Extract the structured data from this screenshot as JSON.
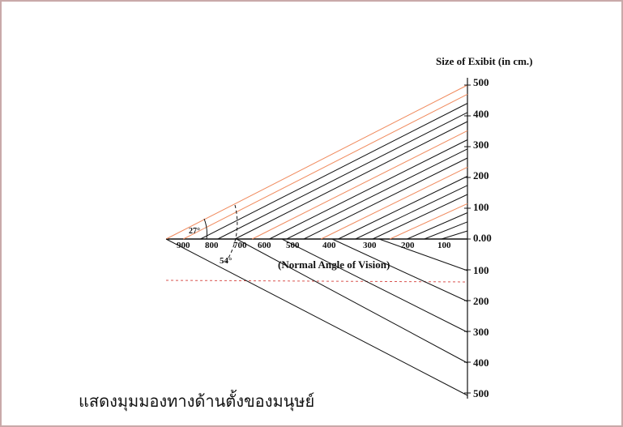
{
  "diagram": {
    "vertical_scale_title": "Size of Exibit (in cm.)",
    "upper_scale_labels": [
      "500",
      "400",
      "300",
      "200",
      "100",
      "0.00"
    ],
    "lower_scale_labels": [
      "100",
      "200",
      "300",
      "400",
      "500"
    ],
    "distance_labels": [
      "900",
      "800",
      "700",
      "600",
      "500",
      "400",
      "300",
      "200",
      "100"
    ],
    "upper_angle_label": "27°",
    "lower_angle_label": "54°",
    "axis_caption": "(Normal Angle of Vision)",
    "caption": "แสดงมุมมองทางด้านตั้งของมนุษย์",
    "colors": {
      "frame": "#c9a9a9",
      "line": "#111111",
      "accent_ray": "#f08a5d",
      "dashed_limit": "#d9534f"
    }
  }
}
